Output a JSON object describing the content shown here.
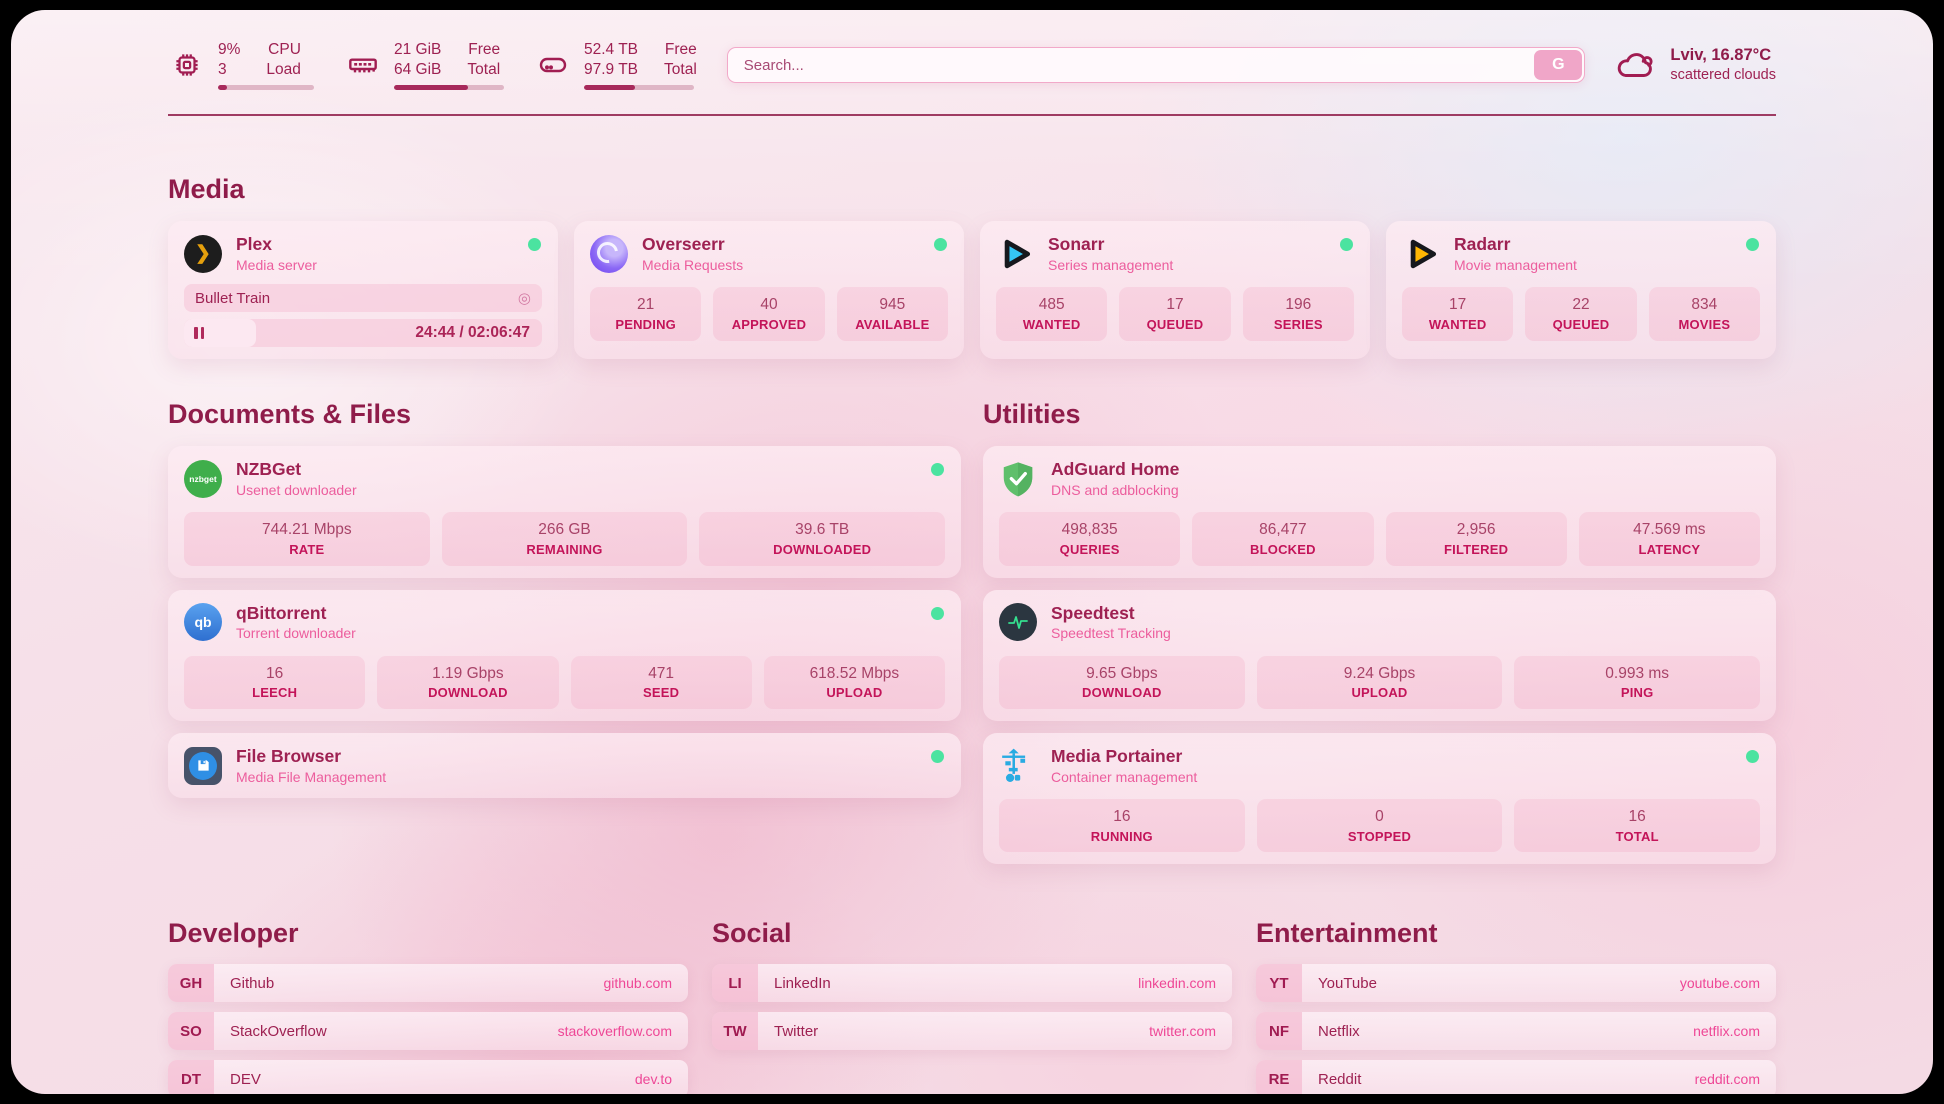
{
  "colors": {
    "accent": "#a11d52",
    "section_title": "#8f1c4a",
    "subtitle_pink": "#ec5d9d",
    "stat_label": "#c31459",
    "url_pink": "#ee4796",
    "online_green": "#4be3a0",
    "plex_orange": "#e5a00d",
    "sonarr_blue": "#35c5f4",
    "radarr_yellow": "#ffb703",
    "adguard_green": "#5fbf6b",
    "portainer_blue": "#29abe2"
  },
  "header": {
    "cpu": {
      "value1": "9%",
      "value2": "3",
      "label1": "CPU",
      "label2": "Load",
      "progress": 9
    },
    "ram": {
      "value1": "21 GiB",
      "value2": "64 GiB",
      "label1": "Free",
      "label2": "Total",
      "progress": 67
    },
    "disk": {
      "value1": "52.4 TB",
      "value2": "97.9 TB",
      "label1": "Free",
      "label2": "Total",
      "progress": 46
    },
    "search": {
      "placeholder": "Search...",
      "value": "",
      "button_label": "G"
    },
    "weather": {
      "location_temp": "Lviv, 16.87°C",
      "condition": "scattered clouds"
    }
  },
  "media": {
    "title": "Media",
    "plex": {
      "name": "Plex",
      "subtitle": "Media server",
      "icon_glyph": "❯",
      "online": true,
      "now_playing": "Bullet Train",
      "time_text": "24:44 / 02:06:47",
      "progress_percent": 20
    },
    "overseerr": {
      "name": "Overseerr",
      "subtitle": "Media Requests",
      "online": true,
      "stats": [
        {
          "value": "21",
          "label": "PENDING"
        },
        {
          "value": "40",
          "label": "APPROVED"
        },
        {
          "value": "945",
          "label": "AVAILABLE"
        }
      ]
    },
    "sonarr": {
      "name": "Sonarr",
      "subtitle": "Series management",
      "online": true,
      "stats": [
        {
          "value": "485",
          "label": "WANTED"
        },
        {
          "value": "17",
          "label": "QUEUED"
        },
        {
          "value": "196",
          "label": "SERIES"
        }
      ]
    },
    "radarr": {
      "name": "Radarr",
      "subtitle": "Movie management",
      "online": true,
      "stats": [
        {
          "value": "17",
          "label": "WANTED"
        },
        {
          "value": "22",
          "label": "QUEUED"
        },
        {
          "value": "834",
          "label": "MOVIES"
        }
      ]
    }
  },
  "documents": {
    "title": "Documents & Files",
    "nzbget": {
      "name": "NZBGet",
      "subtitle": "Usenet downloader",
      "icon_text": "nzbget",
      "online": true,
      "stats": [
        {
          "value": "744.21 Mbps",
          "label": "RATE"
        },
        {
          "value": "266 GB",
          "label": "REMAINING"
        },
        {
          "value": "39.6 TB",
          "label": "DOWNLOADED"
        }
      ]
    },
    "qbittorrent": {
      "name": "qBittorrent",
      "subtitle": "Torrent downloader",
      "icon_text": "qb",
      "online": true,
      "stats": [
        {
          "value": "16",
          "label": "LEECH"
        },
        {
          "value": "1.19 Gbps",
          "label": "DOWNLOAD"
        },
        {
          "value": "471",
          "label": "SEED"
        },
        {
          "value": "618.52 Mbps",
          "label": "UPLOAD"
        }
      ]
    },
    "filebrowser": {
      "name": "File Browser",
      "subtitle": "Media File Management",
      "online": true
    }
  },
  "utilities": {
    "title": "Utilities",
    "adguard": {
      "name": "AdGuard Home",
      "subtitle": "DNS and adblocking",
      "stats": [
        {
          "value": "498,835",
          "label": "QUERIES"
        },
        {
          "value": "86,477",
          "label": "BLOCKED"
        },
        {
          "value": "2,956",
          "label": "FILTERED"
        },
        {
          "value": "47.569 ms",
          "label": "LATENCY"
        }
      ]
    },
    "speedtest": {
      "name": "Speedtest",
      "subtitle": "Speedtest Tracking",
      "stats": [
        {
          "value": "9.65 Gbps",
          "label": "DOWNLOAD"
        },
        {
          "value": "9.24 Gbps",
          "label": "UPLOAD"
        },
        {
          "value": "0.993 ms",
          "label": "PING"
        }
      ]
    },
    "portainer": {
      "name": "Media Portainer",
      "subtitle": "Container management",
      "online": true,
      "stats": [
        {
          "value": "16",
          "label": "RUNNING"
        },
        {
          "value": "0",
          "label": "STOPPED"
        },
        {
          "value": "16",
          "label": "TOTAL"
        }
      ]
    }
  },
  "bookmarks": [
    {
      "title": "Developer",
      "items": [
        {
          "abbr": "GH",
          "name": "Github",
          "url": "github.com"
        },
        {
          "abbr": "SO",
          "name": "StackOverflow",
          "url": "stackoverflow.com"
        },
        {
          "abbr": "DT",
          "name": "DEV",
          "url": "dev.to"
        }
      ]
    },
    {
      "title": "Social",
      "items": [
        {
          "abbr": "LI",
          "name": "LinkedIn",
          "url": "linkedin.com"
        },
        {
          "abbr": "TW",
          "name": "Twitter",
          "url": "twitter.com"
        }
      ]
    },
    {
      "title": "Entertainment",
      "items": [
        {
          "abbr": "YT",
          "name": "YouTube",
          "url": "youtube.com"
        },
        {
          "abbr": "NF",
          "name": "Netflix",
          "url": "netflix.com"
        },
        {
          "abbr": "RE",
          "name": "Reddit",
          "url": "reddit.com"
        }
      ]
    }
  ]
}
